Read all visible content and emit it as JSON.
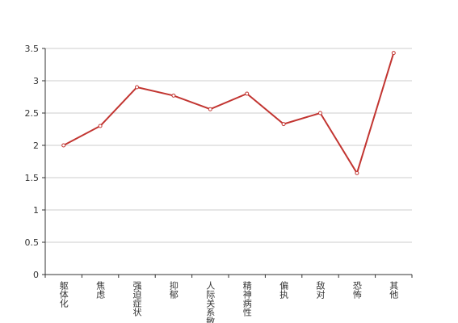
{
  "chart_data": {
    "type": "line",
    "categories": [
      "躯体化",
      "焦虑",
      "强迫症状",
      "抑郁",
      "人际关系敏感",
      "精神病性",
      "偏执",
      "敌对",
      "恐怖",
      "其他"
    ],
    "series": [
      {
        "color": "#c23531",
        "values": [
          2.0,
          2.3,
          2.9,
          2.77,
          2.56,
          2.8,
          2.33,
          2.5,
          1.57,
          3.43
        ]
      }
    ],
    "ylim": [
      0,
      3.5
    ],
    "yticks": [
      0,
      0.5,
      1,
      1.5,
      2,
      2.5,
      3,
      3.5
    ],
    "grid": true
  }
}
